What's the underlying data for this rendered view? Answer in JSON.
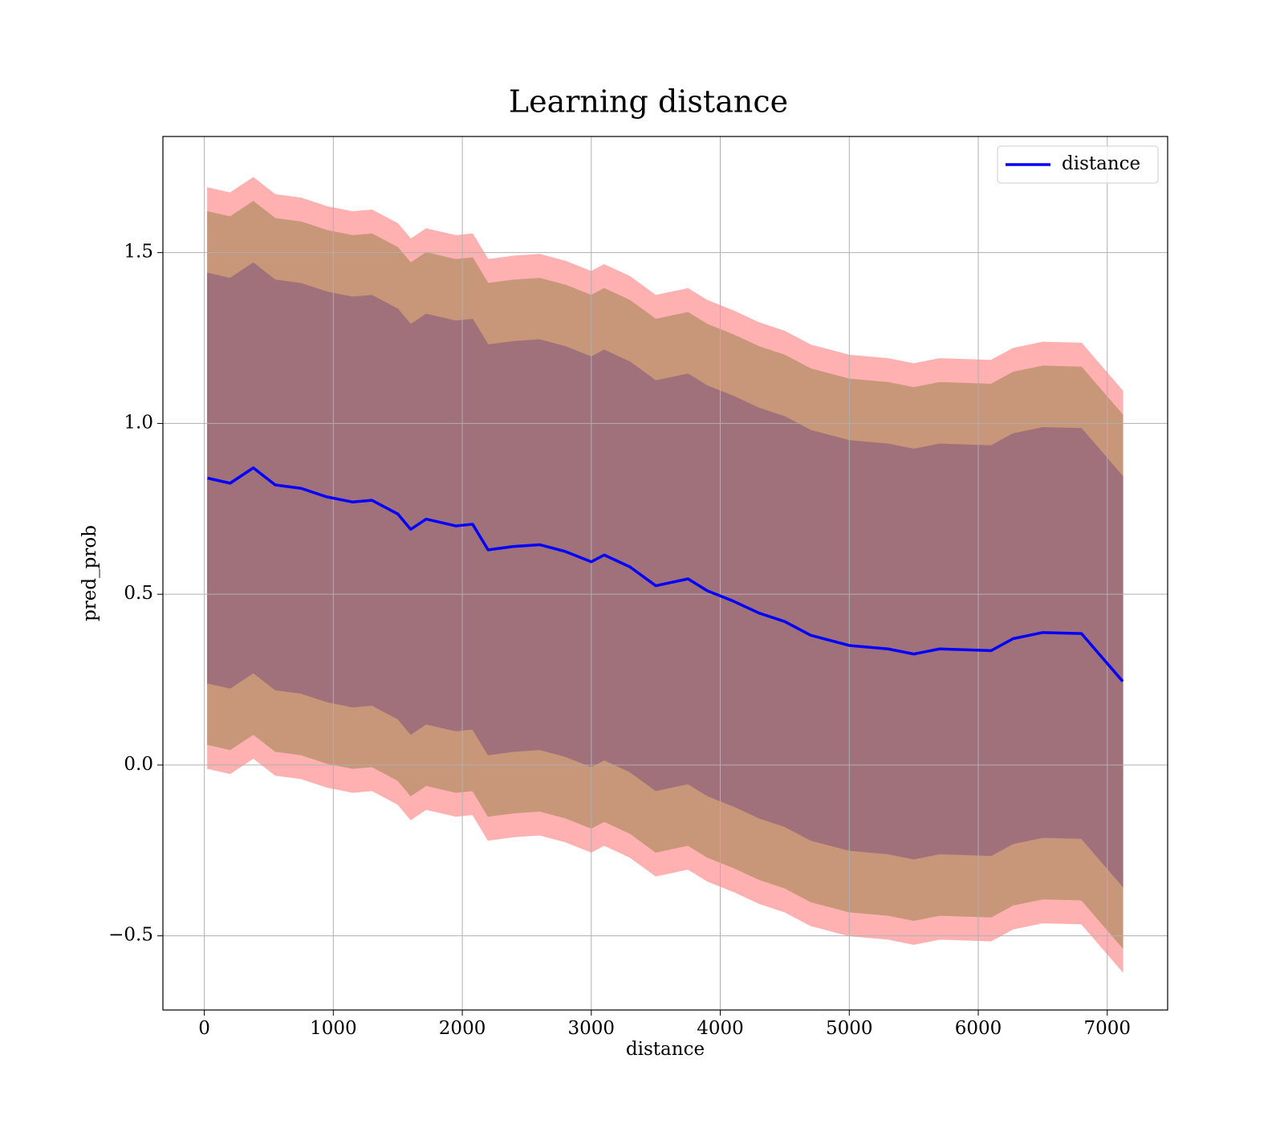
{
  "chart_data": {
    "type": "line",
    "title": "Learning distance",
    "xlabel": "distance",
    "ylabel": "pred_prob",
    "x": [
      25,
      200,
      380,
      550,
      750,
      950,
      1150,
      1300,
      1500,
      1600,
      1720,
      1950,
      2080,
      2200,
      2400,
      2600,
      2800,
      3000,
      3100,
      3300,
      3500,
      3750,
      3900,
      4100,
      4300,
      4500,
      4700,
      5000,
      5300,
      5500,
      5700,
      6100,
      6270,
      6500,
      6800,
      7120
    ],
    "series": [
      {
        "name": "distance",
        "color": "#0000ff",
        "values": [
          0.84,
          0.825,
          0.87,
          0.82,
          0.81,
          0.785,
          0.77,
          0.775,
          0.735,
          0.69,
          0.72,
          0.7,
          0.705,
          0.63,
          0.64,
          0.645,
          0.625,
          0.595,
          0.615,
          0.58,
          0.525,
          0.545,
          0.51,
          0.48,
          0.445,
          0.42,
          0.38,
          0.35,
          0.34,
          0.325,
          0.34,
          0.335,
          0.37,
          0.388,
          0.385,
          0.245
        ]
      }
    ],
    "bands": [
      {
        "color": "#ffb0b0",
        "upper": [
          1.69,
          1.675,
          1.72,
          1.67,
          1.66,
          1.635,
          1.62,
          1.625,
          1.585,
          1.54,
          1.57,
          1.55,
          1.555,
          1.48,
          1.49,
          1.495,
          1.475,
          1.445,
          1.465,
          1.43,
          1.375,
          1.395,
          1.36,
          1.33,
          1.295,
          1.27,
          1.23,
          1.2,
          1.19,
          1.175,
          1.19,
          1.185,
          1.22,
          1.238,
          1.235,
          1.095
        ],
        "lower": [
          -0.01,
          -0.025,
          0.02,
          -0.03,
          -0.04,
          -0.065,
          -0.08,
          -0.075,
          -0.115,
          -0.16,
          -0.13,
          -0.15,
          -0.145,
          -0.22,
          -0.21,
          -0.205,
          -0.225,
          -0.255,
          -0.235,
          -0.27,
          -0.325,
          -0.305,
          -0.34,
          -0.37,
          -0.405,
          -0.43,
          -0.47,
          -0.5,
          -0.51,
          -0.525,
          -0.51,
          -0.515,
          -0.48,
          -0.462,
          -0.465,
          -0.605
        ]
      },
      {
        "color": "#c89679",
        "upper": [
          1.62,
          1.605,
          1.65,
          1.6,
          1.59,
          1.565,
          1.55,
          1.555,
          1.515,
          1.47,
          1.5,
          1.48,
          1.485,
          1.41,
          1.42,
          1.425,
          1.405,
          1.375,
          1.395,
          1.36,
          1.305,
          1.325,
          1.29,
          1.26,
          1.225,
          1.2,
          1.16,
          1.13,
          1.12,
          1.105,
          1.12,
          1.115,
          1.15,
          1.168,
          1.165,
          1.025
        ],
        "lower": [
          0.06,
          0.045,
          0.09,
          0.04,
          0.03,
          0.005,
          -0.01,
          -0.005,
          -0.045,
          -0.09,
          -0.06,
          -0.08,
          -0.075,
          -0.15,
          -0.14,
          -0.135,
          -0.155,
          -0.185,
          -0.165,
          -0.2,
          -0.255,
          -0.235,
          -0.27,
          -0.3,
          -0.335,
          -0.36,
          -0.4,
          -0.43,
          -0.44,
          -0.455,
          -0.44,
          -0.445,
          -0.41,
          -0.392,
          -0.395,
          -0.535
        ]
      },
      {
        "color": "#a0717a",
        "upper": [
          1.44,
          1.425,
          1.47,
          1.42,
          1.41,
          1.385,
          1.37,
          1.375,
          1.335,
          1.29,
          1.32,
          1.3,
          1.305,
          1.23,
          1.24,
          1.245,
          1.225,
          1.195,
          1.215,
          1.18,
          1.125,
          1.145,
          1.11,
          1.08,
          1.045,
          1.02,
          0.98,
          0.95,
          0.94,
          0.925,
          0.94,
          0.935,
          0.97,
          0.988,
          0.985,
          0.845
        ],
        "lower": [
          0.24,
          0.225,
          0.27,
          0.22,
          0.21,
          0.185,
          0.17,
          0.175,
          0.135,
          0.09,
          0.12,
          0.1,
          0.105,
          0.03,
          0.04,
          0.045,
          0.025,
          -0.005,
          0.015,
          -0.02,
          -0.075,
          -0.055,
          -0.09,
          -0.12,
          -0.155,
          -0.18,
          -0.22,
          -0.25,
          -0.26,
          -0.275,
          -0.26,
          -0.265,
          -0.23,
          -0.212,
          -0.215,
          -0.355
        ]
      }
    ],
    "xlim": [
      -321,
      7468
    ],
    "ylim": [
      -0.717,
      1.84
    ],
    "xticks": [
      0,
      1000,
      2000,
      3000,
      4000,
      5000,
      6000,
      7000
    ],
    "yticks": [
      {
        "value": -0.5,
        "label": "−0.5"
      },
      {
        "value": 0,
        "label": "0.0"
      },
      0.5,
      {
        "value": 1,
        "label": "1.0"
      },
      1.5
    ],
    "grid": true,
    "legend": "upper right"
  }
}
